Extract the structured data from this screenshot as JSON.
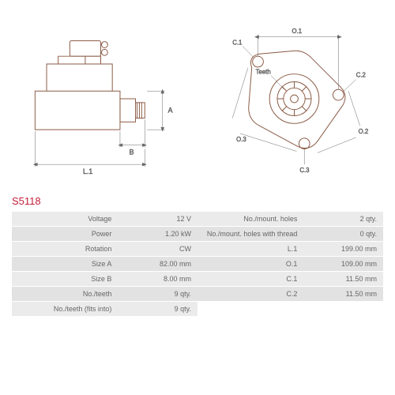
{
  "part_number": "S5118",
  "diagram_left": {
    "labels": {
      "A": "A",
      "B": "B",
      "L1": "L.1"
    },
    "stroke": "#8a5a44",
    "dim_stroke": "#666666"
  },
  "diagram_right": {
    "labels": {
      "O1": "O.1",
      "O2": "O.2",
      "O3": "O.3",
      "C1": "C.1",
      "C2": "C.2",
      "C3": "C.3",
      "Teeth": "Teeth"
    },
    "stroke": "#8a5a44",
    "dim_stroke": "#666666"
  },
  "specs_left": [
    {
      "label": "Voltage",
      "value": "12 V"
    },
    {
      "label": "Power",
      "value": "1.20 kW"
    },
    {
      "label": "Rotation",
      "value": "CW"
    },
    {
      "label": "Size A",
      "value": "82.00 mm"
    },
    {
      "label": "Size B",
      "value": "8.00 mm"
    },
    {
      "label": "No./teeth",
      "value": "9 qty."
    },
    {
      "label": "No./teeth (fits into)",
      "value": "9 qty."
    }
  ],
  "specs_right": [
    {
      "label": "No./mount. holes",
      "value": "2 qty."
    },
    {
      "label": "No./mount. holes with thread",
      "value": "0 qty."
    },
    {
      "label": "L.1",
      "value": "199.00 mm"
    },
    {
      "label": "O.1",
      "value": "109.00 mm"
    },
    {
      "label": "C.1",
      "value": "11.50 mm"
    },
    {
      "label": "C.2",
      "value": "11.50 mm"
    }
  ],
  "colors": {
    "part_number": "#c41e3a",
    "row_odd": "#ebebeb",
    "row_even": "#e2e2e2",
    "text": "#666666"
  }
}
